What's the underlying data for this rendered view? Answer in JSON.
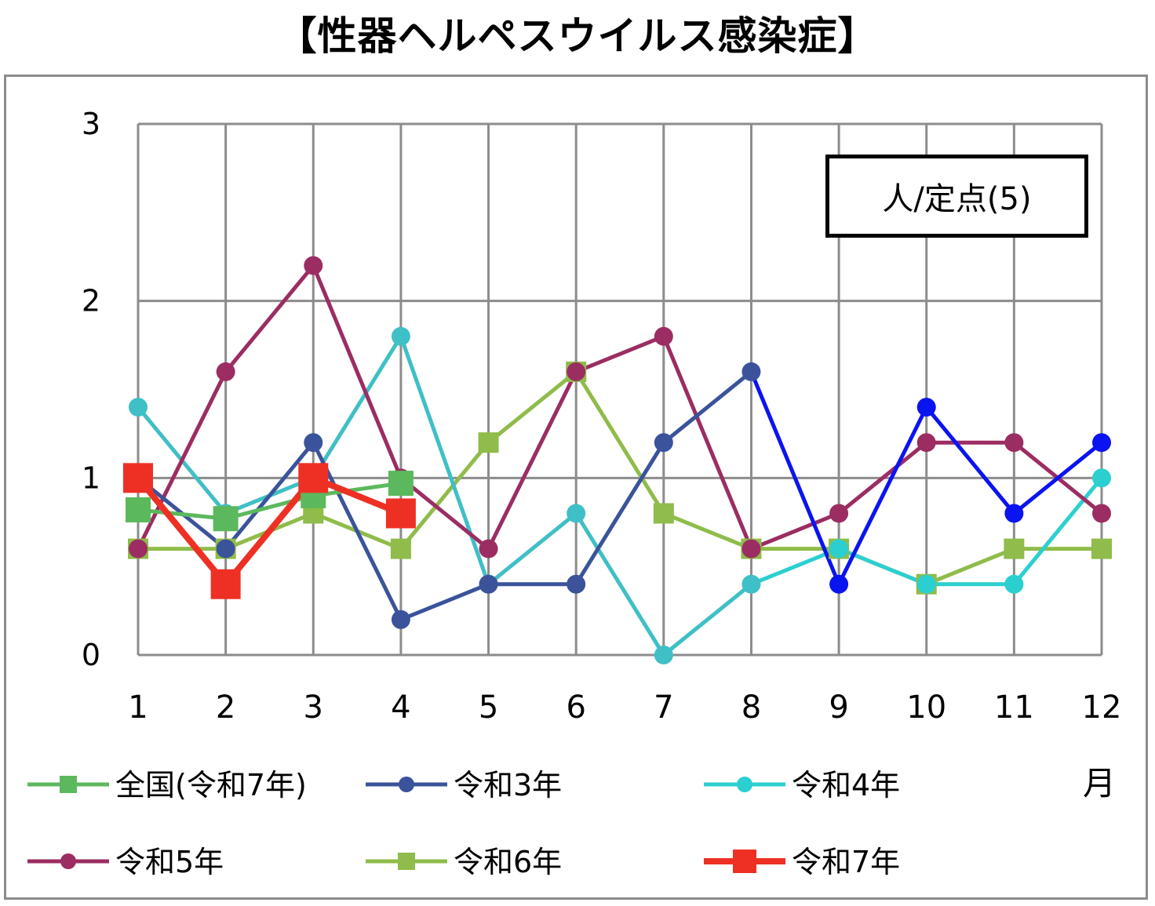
{
  "title": "【性器ヘルペスウイルス感染症】",
  "unit_label": "人/定点(5)",
  "month_label": "月",
  "chart_data": {
    "type": "line",
    "title": "【性器ヘルペスウイルス感染症】",
    "xlabel": "月",
    "ylabel": "人/定点(5)",
    "categories": [
      "1",
      "2",
      "3",
      "4",
      "5",
      "6",
      "7",
      "8",
      "9",
      "10",
      "11",
      "12"
    ],
    "y_ticks": [
      "0",
      "1",
      "2",
      "3"
    ],
    "ylim": [
      0,
      3
    ],
    "grid": true,
    "legend_position": "bottom",
    "series": [
      {
        "name": "全国(令和7年)",
        "color": "#5cb85c",
        "marker": "square",
        "values": [
          0.82,
          0.77,
          0.9,
          0.97,
          null,
          null,
          null,
          null,
          null,
          null,
          null,
          null
        ]
      },
      {
        "name": "令和3年",
        "color": "#3a539b",
        "color2": "#0a14f0",
        "marker": "circle",
        "values": [
          1.0,
          0.6,
          1.2,
          0.2,
          0.4,
          0.4,
          1.2,
          1.6,
          0.4,
          1.4,
          0.8,
          1.2
        ]
      },
      {
        "name": "令和4年",
        "color": "#3fbfc6",
        "color2": "#2ccfd0",
        "marker": "circle",
        "values": [
          1.4,
          0.8,
          1.0,
          1.8,
          0.4,
          0.8,
          0.0,
          0.4,
          0.6,
          0.4,
          0.4,
          1.0
        ]
      },
      {
        "name": "令和5年",
        "color": "#9b2d62",
        "marker": "circle",
        "values": [
          0.6,
          1.6,
          2.2,
          1.0,
          0.6,
          1.6,
          1.8,
          0.6,
          0.8,
          1.2,
          1.2,
          0.8
        ]
      },
      {
        "name": "令和6年",
        "color": "#8fbc4a",
        "marker": "square",
        "values": [
          0.6,
          0.6,
          0.8,
          0.6,
          1.2,
          1.6,
          0.8,
          0.6,
          0.6,
          0.4,
          0.6,
          0.6
        ]
      },
      {
        "name": "令和7年",
        "color": "#ee3024",
        "marker": "square",
        "values": [
          1.0,
          0.4,
          1.0,
          0.8,
          null,
          null,
          null,
          null,
          null,
          null,
          null,
          null
        ]
      }
    ]
  }
}
